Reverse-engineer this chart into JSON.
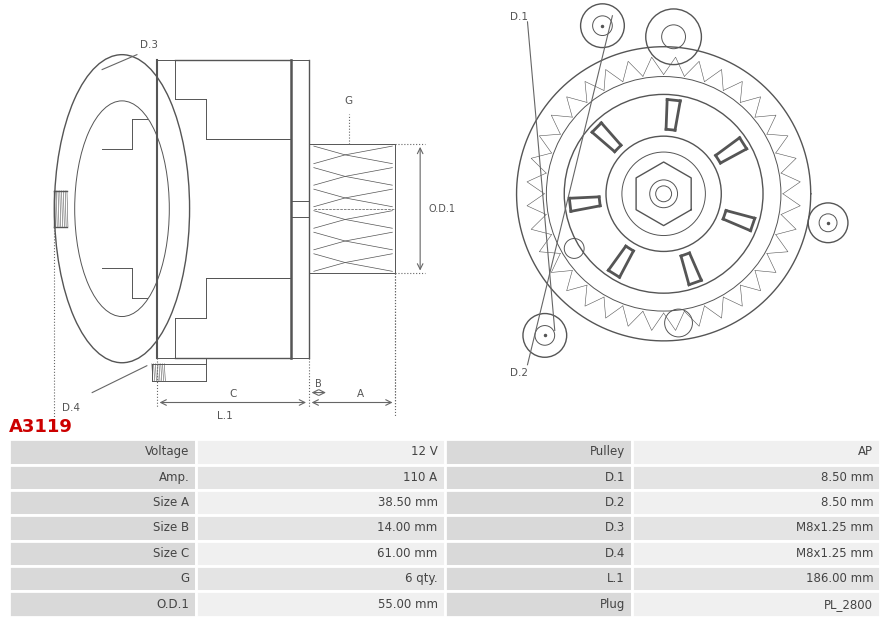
{
  "title": "A3119",
  "title_color": "#cc0000",
  "table_rows": [
    [
      "Voltage",
      "12 V",
      "Pulley",
      "AP"
    ],
    [
      "Amp.",
      "110 A",
      "D.1",
      "8.50 mm"
    ],
    [
      "Size A",
      "38.50 mm",
      "D.2",
      "8.50 mm"
    ],
    [
      "Size B",
      "14.00 mm",
      "D.3",
      "M8x1.25 mm"
    ],
    [
      "Size C",
      "61.00 mm",
      "D.4",
      "M8x1.25 mm"
    ],
    [
      "G",
      "6 qty.",
      "L.1",
      "186.00 mm"
    ],
    [
      "O.D.1",
      "55.00 mm",
      "Plug",
      "PL_2800"
    ]
  ],
  "header_bg": "#d9d9d9",
  "row_bg_odd": "#f0f0f0",
  "row_bg_even": "#e4e4e4",
  "text_color": "#444444",
  "border_color": "#ffffff",
  "fig_width": 8.89,
  "fig_height": 6.23
}
